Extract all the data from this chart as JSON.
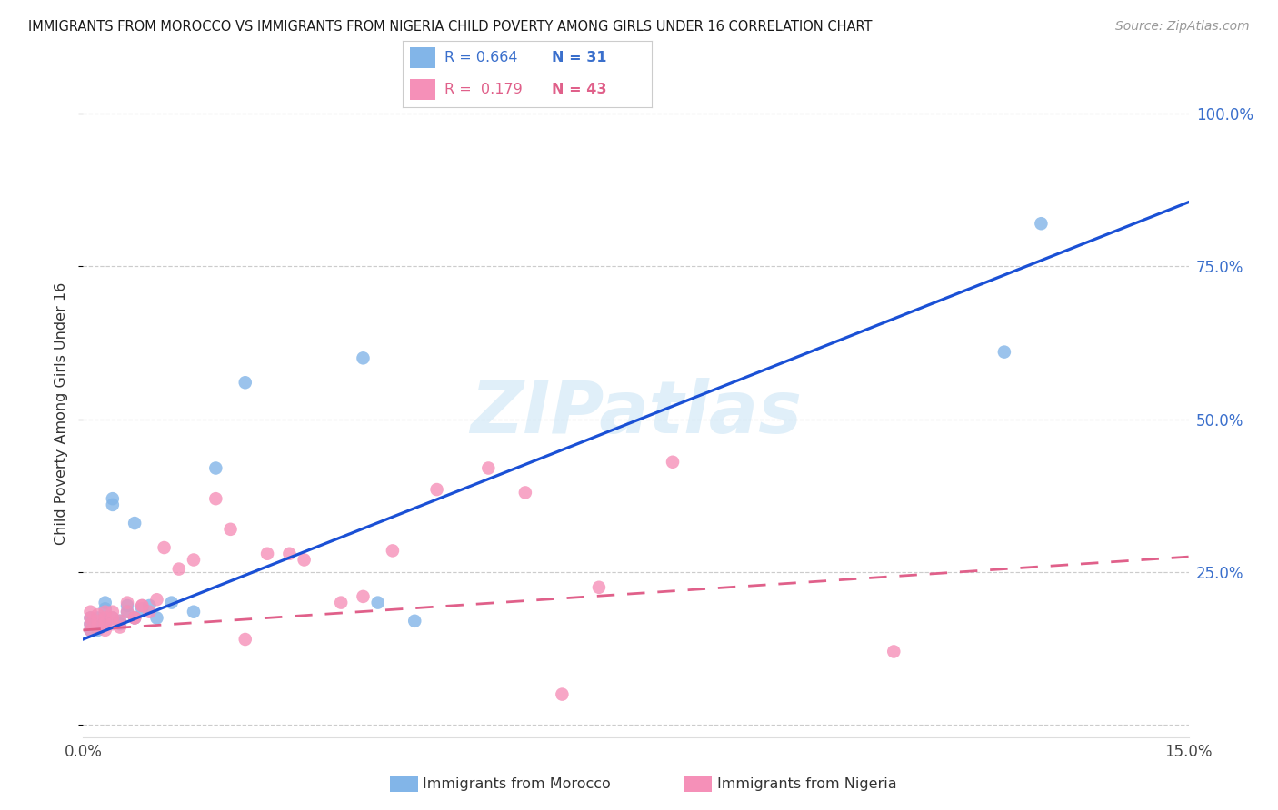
{
  "title": "IMMIGRANTS FROM MOROCCO VS IMMIGRANTS FROM NIGERIA CHILD POVERTY AMONG GIRLS UNDER 16 CORRELATION CHART",
  "source": "Source: ZipAtlas.com",
  "ylabel": "Child Poverty Among Girls Under 16",
  "xmin": 0.0,
  "xmax": 0.15,
  "ymin": -0.02,
  "ymax": 1.04,
  "morocco_R": 0.664,
  "morocco_N": 31,
  "nigeria_R": 0.179,
  "nigeria_N": 43,
  "legend_label_morocco": "Immigrants from Morocco",
  "legend_label_nigeria": "Immigrants from Nigeria",
  "morocco_color": "#82b5e8",
  "nigeria_color": "#f590b8",
  "morocco_line_color": "#1a50d5",
  "nigeria_line_color": "#e0608a",
  "watermark": "ZIPatlas",
  "yticks": [
    0.0,
    0.25,
    0.5,
    0.75,
    1.0
  ],
  "ytick_labels": [
    "",
    "25.0%",
    "50.0%",
    "75.0%",
    "100.0%"
  ],
  "morocco_x": [
    0.001,
    0.001,
    0.001,
    0.002,
    0.002,
    0.002,
    0.003,
    0.003,
    0.003,
    0.003,
    0.004,
    0.004,
    0.004,
    0.005,
    0.005,
    0.006,
    0.006,
    0.007,
    0.007,
    0.008,
    0.009,
    0.01,
    0.012,
    0.015,
    0.018,
    0.022,
    0.038,
    0.04,
    0.045,
    0.125,
    0.13
  ],
  "morocco_y": [
    0.155,
    0.165,
    0.175,
    0.155,
    0.16,
    0.175,
    0.165,
    0.17,
    0.19,
    0.2,
    0.36,
    0.37,
    0.175,
    0.17,
    0.165,
    0.195,
    0.185,
    0.175,
    0.33,
    0.19,
    0.195,
    0.175,
    0.2,
    0.185,
    0.42,
    0.56,
    0.6,
    0.2,
    0.17,
    0.61,
    0.82
  ],
  "nigeria_x": [
    0.001,
    0.001,
    0.001,
    0.001,
    0.002,
    0.002,
    0.002,
    0.003,
    0.003,
    0.003,
    0.003,
    0.004,
    0.004,
    0.004,
    0.005,
    0.005,
    0.006,
    0.006,
    0.007,
    0.007,
    0.008,
    0.008,
    0.009,
    0.01,
    0.011,
    0.013,
    0.015,
    0.018,
    0.02,
    0.022,
    0.025,
    0.028,
    0.03,
    0.035,
    0.038,
    0.042,
    0.048,
    0.055,
    0.06,
    0.065,
    0.07,
    0.08,
    0.11
  ],
  "nigeria_y": [
    0.155,
    0.165,
    0.175,
    0.185,
    0.16,
    0.17,
    0.18,
    0.155,
    0.165,
    0.175,
    0.185,
    0.165,
    0.175,
    0.185,
    0.17,
    0.16,
    0.2,
    0.185,
    0.175,
    0.175,
    0.195,
    0.195,
    0.185,
    0.205,
    0.29,
    0.255,
    0.27,
    0.37,
    0.32,
    0.14,
    0.28,
    0.28,
    0.27,
    0.2,
    0.21,
    0.285,
    0.385,
    0.42,
    0.38,
    0.05,
    0.225,
    0.43,
    0.12
  ],
  "morocco_line_x0": 0.0,
  "morocco_line_y0": 0.14,
  "morocco_line_x1": 0.15,
  "morocco_line_y1": 0.855,
  "nigeria_line_x0": 0.0,
  "nigeria_line_y0": 0.155,
  "nigeria_line_x1": 0.15,
  "nigeria_line_y1": 0.275
}
